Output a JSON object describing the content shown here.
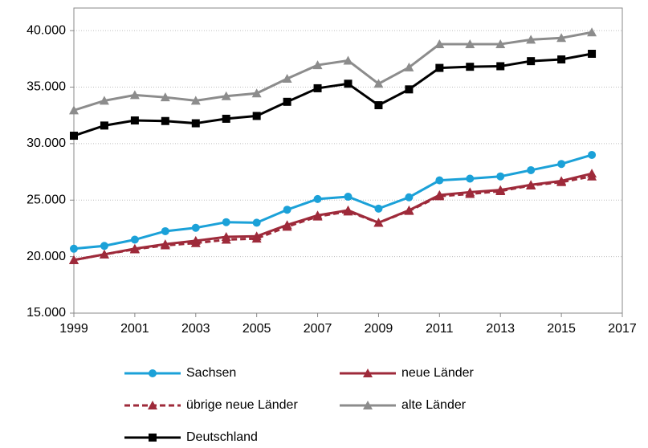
{
  "chart_data": {
    "type": "line",
    "x": [
      1999,
      2000,
      2001,
      2002,
      2003,
      2004,
      2005,
      2006,
      2007,
      2008,
      2009,
      2010,
      2011,
      2012,
      2013,
      2014,
      2015,
      2016
    ],
    "xlim": [
      1999,
      2017
    ],
    "xticks": [
      1999,
      2001,
      2003,
      2005,
      2007,
      2009,
      2011,
      2013,
      2015,
      2017
    ],
    "ylim": [
      15000,
      42000
    ],
    "yticks": [
      {
        "value": 15000,
        "label": "15.000"
      },
      {
        "value": 20000,
        "label": "20.000"
      },
      {
        "value": 25000,
        "label": "25.000"
      },
      {
        "value": 30000,
        "label": "30.000"
      },
      {
        "value": 35000,
        "label": "35.000"
      },
      {
        "value": 40000,
        "label": "40.000"
      }
    ],
    "grid": true,
    "legend": "bottom",
    "series": [
      {
        "name": "Sachsen",
        "color": "#1ba1d8",
        "marker": "circle",
        "dashed": false,
        "values": [
          20700,
          20950,
          21500,
          22250,
          22550,
          23050,
          23000,
          24150,
          25100,
          25300,
          24250,
          25250,
          26750,
          26900,
          27100,
          27650,
          28200,
          29000
        ]
      },
      {
        "name": "neue Länder",
        "color": "#9e2a3a",
        "marker": "triangle",
        "dashed": false,
        "values": [
          19700,
          20200,
          20700,
          21100,
          21400,
          21750,
          21800,
          22800,
          23650,
          24100,
          23000,
          24100,
          25450,
          25700,
          25900,
          26350,
          26700,
          27350
        ]
      },
      {
        "name": "übrige neue Länder",
        "color": "#9e2a3a",
        "marker": "triangle",
        "dashed": true,
        "values": [
          19700,
          20200,
          20650,
          21000,
          21200,
          21500,
          21600,
          22650,
          23550,
          24000,
          23000,
          24050,
          25350,
          25550,
          25800,
          26300,
          26600,
          27100
        ]
      },
      {
        "name": "alte Länder",
        "color": "#8c8c8c",
        "marker": "triangle",
        "dashed": false,
        "values": [
          32950,
          33800,
          34300,
          34100,
          33800,
          34200,
          34450,
          35750,
          36950,
          37350,
          35300,
          36750,
          38800,
          38800,
          38800,
          39200,
          39350,
          39850
        ]
      },
      {
        "name": "Deutschland",
        "color": "#000000",
        "marker": "square",
        "dashed": false,
        "values": [
          30700,
          31600,
          32050,
          32000,
          31800,
          32200,
          32450,
          33700,
          34900,
          35300,
          33400,
          34800,
          36700,
          36800,
          36850,
          37300,
          37450,
          37950
        ]
      }
    ]
  }
}
